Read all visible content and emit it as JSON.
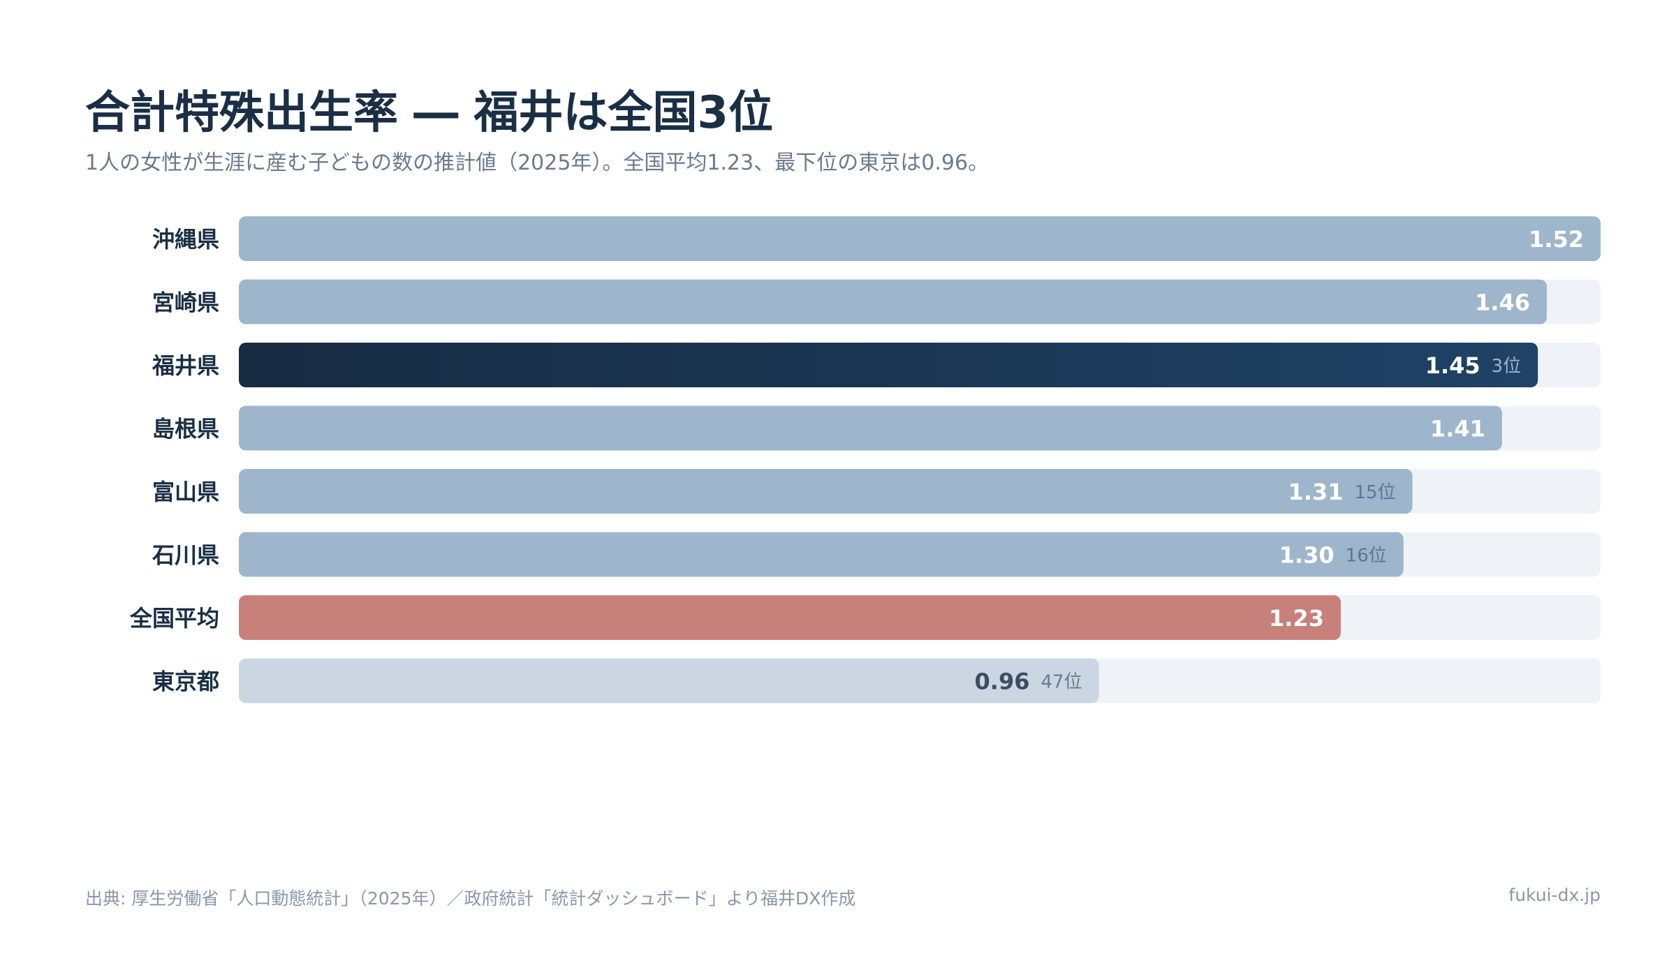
{
  "header": {
    "title": "合計特殊出生率 ― 福井は全国3位",
    "subtitle": "1人の女性が生涯に産む子どもの数の推計値（2025年）。全国平均1.23、最下位の東京は0.96。"
  },
  "footer": {
    "source": "出典: 厚生労働省「人口動態統計」（2025年）／政府統計「統計ダッシュボード」より福井DX作成",
    "site": "fukui-dx.jp"
  },
  "colors": {
    "default_bar": "#9eb6cc",
    "highlight_bar_start": "#172b42",
    "highlight_bar_end": "#1f4266",
    "average_bar": "#c8807a",
    "lowest_bar": "#cbd6e2",
    "track": "#eff3f7",
    "label_text": "#1a2f45"
  },
  "chart_data": {
    "type": "bar",
    "orientation": "horizontal",
    "xlim": [
      0,
      1.52
    ],
    "grid": false,
    "categories": [
      "沖縄県",
      "宮崎県",
      "福井県",
      "島根県",
      "富山県",
      "石川県",
      "全国平均",
      "東京都"
    ],
    "values": [
      1.52,
      1.46,
      1.45,
      1.41,
      1.31,
      1.3,
      1.23,
      0.96
    ],
    "value_labels": [
      "1.52",
      "1.46",
      "1.45",
      "1.41",
      "1.31",
      "1.30",
      "1.23",
      "0.96"
    ],
    "rank_labels": [
      "",
      "",
      "3位",
      "",
      "15位",
      "16位",
      "",
      "47位"
    ],
    "styles": [
      "default",
      "default",
      "highlight",
      "default",
      "default",
      "default",
      "average",
      "lowest"
    ]
  }
}
